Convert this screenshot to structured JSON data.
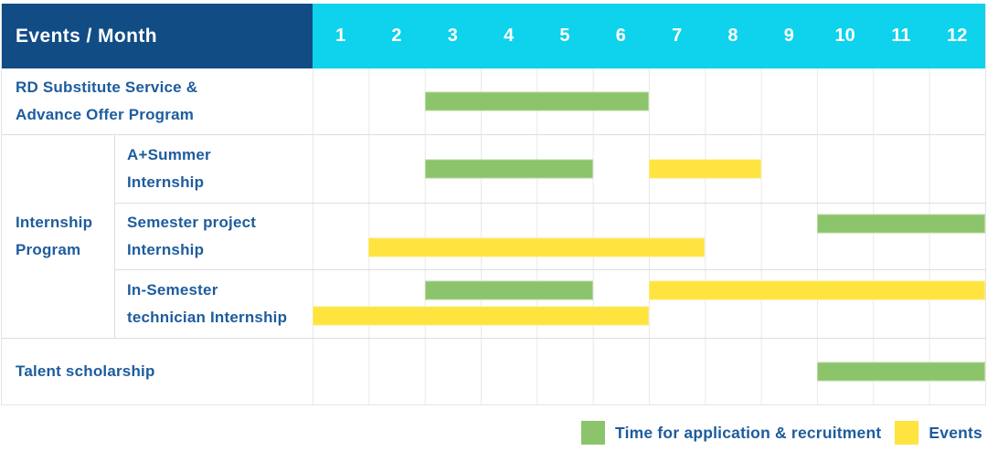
{
  "header": {
    "title": "Events / Month",
    "months": [
      "1",
      "2",
      "3",
      "4",
      "5",
      "6",
      "7",
      "8",
      "9",
      "10",
      "11",
      "12"
    ]
  },
  "body": {
    "sections": [
      {
        "type": "row",
        "label": "RD Substitute Service &\nAdvance Offer Program",
        "bars": [
          {
            "kind": "application",
            "start": 3,
            "end": 6,
            "line": "center"
          }
        ]
      },
      {
        "type": "group",
        "label": "Internship\nProgram",
        "rows": [
          {
            "label": "A+Summer\nInternship",
            "bars": [
              {
                "kind": "application",
                "start": 3,
                "end": 5,
                "line": "center"
              },
              {
                "kind": "events",
                "start": 7,
                "end": 8,
                "line": "center"
              }
            ]
          },
          {
            "label": "Semester project\nInternship",
            "bars": [
              {
                "kind": "application",
                "start": 10,
                "end": 12,
                "line": "upper"
              },
              {
                "kind": "events",
                "start": 2,
                "end": 7,
                "line": "lower"
              }
            ]
          },
          {
            "label": "In-Semester\ntechnician Internship",
            "bars": [
              {
                "kind": "application",
                "start": 3,
                "end": 5,
                "line": "upper"
              },
              {
                "kind": "events",
                "start": 7,
                "end": 12,
                "line": "upper"
              },
              {
                "kind": "events",
                "start": 1,
                "end": 6,
                "line": "lower"
              }
            ]
          }
        ]
      },
      {
        "type": "row",
        "label": "Talent scholarship",
        "bars": [
          {
            "kind": "application",
            "start": 10,
            "end": 12,
            "line": "center"
          }
        ]
      }
    ]
  },
  "legend": {
    "items": [
      {
        "kind": "application",
        "label": "Time for application & recruitment"
      },
      {
        "kind": "events",
        "label": "Events"
      }
    ]
  },
  "colors": {
    "header_navy": "#114c85",
    "header_cyan": "#0fd2ec",
    "application_green": "#8cc46b",
    "events_yellow": "#ffe33e",
    "label_blue": "#1d5c9d"
  },
  "chart_data": {
    "type": "bar",
    "subtype": "gantt",
    "title": "Events / Month",
    "x_categories": [
      1,
      2,
      3,
      4,
      5,
      6,
      7,
      8,
      9,
      10,
      11,
      12
    ],
    "xlabel": "Month",
    "legend": [
      "Time for application & recruitment",
      "Events"
    ],
    "legend_position": "bottom-right",
    "grid": true,
    "rows": [
      {
        "group": null,
        "event": "RD Substitute Service & Advance Offer Program",
        "application_recruitment_months": [
          [
            3,
            6
          ]
        ],
        "events_months": []
      },
      {
        "group": "Internship Program",
        "event": "A+Summer Internship",
        "application_recruitment_months": [
          [
            3,
            5
          ]
        ],
        "events_months": [
          [
            7,
            8
          ]
        ]
      },
      {
        "group": "Internship Program",
        "event": "Semester project Internship",
        "application_recruitment_months": [
          [
            10,
            12
          ]
        ],
        "events_months": [
          [
            2,
            7
          ]
        ]
      },
      {
        "group": "Internship Program",
        "event": "In-Semester technician Internship",
        "application_recruitment_months": [
          [
            3,
            5
          ]
        ],
        "events_months": [
          [
            7,
            12
          ],
          [
            1,
            6
          ]
        ]
      },
      {
        "group": null,
        "event": "Talent scholarship",
        "application_recruitment_months": [
          [
            10,
            12
          ]
        ],
        "events_months": []
      }
    ]
  }
}
